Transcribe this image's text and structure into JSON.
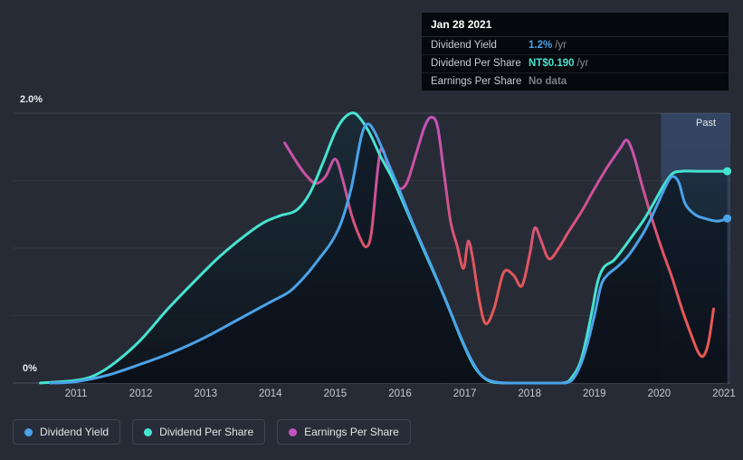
{
  "page": {
    "background": "#272B36"
  },
  "tooltip": {
    "date": "Jan 28 2021",
    "rows": [
      {
        "label": "Dividend Yield",
        "value": "1.2%",
        "suffix": "/yr",
        "value_color": "#4BA3E8"
      },
      {
        "label": "Dividend Per Share",
        "value": "NT$0.190",
        "suffix": "/yr",
        "value_color": "#46E3D0"
      },
      {
        "label": "Earnings Per Share",
        "value": "No data",
        "suffix": "",
        "value_color": "#7A8089"
      }
    ]
  },
  "axis": {
    "y_top": "2.0%",
    "y_bottom": "0%"
  },
  "legend": [
    {
      "label": "Dividend Yield",
      "color": "#4BA3E8"
    },
    {
      "label": "Dividend Per Share",
      "color": "#46E3D0"
    },
    {
      "label": "Earnings Per Share",
      "color": "#C653BE"
    }
  ],
  "chart_data": {
    "type": "line",
    "y_axis": {
      "min": 0,
      "max": 2.0,
      "unit": "%",
      "top_label": "2.0%",
      "bottom_label": "0%",
      "gridlines": [
        2.0,
        1.5,
        1.0,
        0.5,
        0
      ]
    },
    "x_ticks": [
      {
        "label": "2011",
        "year": 2011
      },
      {
        "label": "2012",
        "year": 2012
      },
      {
        "label": "2013",
        "year": 2013
      },
      {
        "label": "2014",
        "year": 2014
      },
      {
        "label": "2015",
        "year": 2015
      },
      {
        "label": "2016",
        "year": 2016
      },
      {
        "label": "2017",
        "year": 2017
      },
      {
        "label": "2018",
        "year": 2018
      },
      {
        "label": "2019",
        "year": 2019
      },
      {
        "label": "2020",
        "year": 2020
      },
      {
        "label": "2021",
        "year": 2021
      }
    ],
    "past_region": {
      "label": "Past",
      "start_year": 2020.03,
      "end_year": 2021.1
    },
    "series": [
      {
        "name": "Dividend Yield",
        "color": "#4BA3E8",
        "points": [
          [
            2010.6,
            0
          ],
          [
            2011,
            0.01
          ],
          [
            2011.5,
            0.06
          ],
          [
            2012,
            0.14
          ],
          [
            2012.5,
            0.23
          ],
          [
            2013,
            0.34
          ],
          [
            2013.5,
            0.47
          ],
          [
            2014,
            0.6
          ],
          [
            2014.3,
            0.68
          ],
          [
            2014.55,
            0.8
          ],
          [
            2014.75,
            0.92
          ],
          [
            2014.95,
            1.05
          ],
          [
            2015.1,
            1.2
          ],
          [
            2015.25,
            1.45
          ],
          [
            2015.4,
            1.82
          ],
          [
            2015.5,
            1.92
          ],
          [
            2015.62,
            1.85
          ],
          [
            2015.8,
            1.65
          ],
          [
            2016,
            1.42
          ],
          [
            2016.2,
            1.18
          ],
          [
            2016.5,
            0.85
          ],
          [
            2016.8,
            0.5
          ],
          [
            2017.05,
            0.22
          ],
          [
            2017.25,
            0.06
          ],
          [
            2017.45,
            0.01
          ],
          [
            2017.7,
            0
          ],
          [
            2018.2,
            0
          ],
          [
            2018.55,
            0
          ],
          [
            2018.7,
            0.05
          ],
          [
            2018.85,
            0.22
          ],
          [
            2019,
            0.5
          ],
          [
            2019.1,
            0.72
          ],
          [
            2019.2,
            0.8
          ],
          [
            2019.35,
            0.86
          ],
          [
            2019.5,
            0.93
          ],
          [
            2019.65,
            1.03
          ],
          [
            2019.8,
            1.15
          ],
          [
            2019.95,
            1.3
          ],
          [
            2020.1,
            1.46
          ],
          [
            2020.2,
            1.53
          ],
          [
            2020.3,
            1.49
          ],
          [
            2020.4,
            1.33
          ],
          [
            2020.55,
            1.25
          ],
          [
            2020.7,
            1.22
          ],
          [
            2020.9,
            1.2
          ],
          [
            2021.05,
            1.22
          ]
        ]
      },
      {
        "name": "Dividend Per Share",
        "color": "#46E3D0",
        "points": [
          [
            2010.45,
            0
          ],
          [
            2011,
            0.02
          ],
          [
            2011.3,
            0.06
          ],
          [
            2011.6,
            0.15
          ],
          [
            2012,
            0.32
          ],
          [
            2012.4,
            0.54
          ],
          [
            2012.8,
            0.74
          ],
          [
            2013.2,
            0.93
          ],
          [
            2013.6,
            1.09
          ],
          [
            2013.9,
            1.19
          ],
          [
            2014.15,
            1.24
          ],
          [
            2014.4,
            1.28
          ],
          [
            2014.6,
            1.4
          ],
          [
            2014.8,
            1.62
          ],
          [
            2015,
            1.86
          ],
          [
            2015.15,
            1.97
          ],
          [
            2015.3,
            2.0
          ],
          [
            2015.5,
            1.88
          ],
          [
            2015.7,
            1.68
          ],
          [
            2015.9,
            1.5
          ],
          [
            2016.1,
            1.28
          ],
          [
            2016.4,
            0.95
          ],
          [
            2016.7,
            0.62
          ],
          [
            2016.95,
            0.32
          ],
          [
            2017.15,
            0.12
          ],
          [
            2017.35,
            0.02
          ],
          [
            2017.6,
            0
          ],
          [
            2018,
            0
          ],
          [
            2018.5,
            0
          ],
          [
            2018.65,
            0.04
          ],
          [
            2018.8,
            0.18
          ],
          [
            2018.95,
            0.5
          ],
          [
            2019.05,
            0.75
          ],
          [
            2019.15,
            0.86
          ],
          [
            2019.3,
            0.91
          ],
          [
            2019.45,
            1.0
          ],
          [
            2019.6,
            1.1
          ],
          [
            2019.75,
            1.2
          ],
          [
            2019.9,
            1.32
          ],
          [
            2020.05,
            1.45
          ],
          [
            2020.2,
            1.55
          ],
          [
            2020.35,
            1.57
          ],
          [
            2020.6,
            1.57
          ],
          [
            2020.85,
            1.57
          ],
          [
            2021.05,
            1.57
          ]
        ]
      },
      {
        "name": "Earnings Per Share",
        "color": "#C653BE",
        "color_low": "#EA5A4C",
        "points": [
          [
            2014.22,
            1.78
          ],
          [
            2014.4,
            1.64
          ],
          [
            2014.55,
            1.54
          ],
          [
            2014.7,
            1.48
          ],
          [
            2014.85,
            1.53
          ],
          [
            2015.0,
            1.66
          ],
          [
            2015.12,
            1.5
          ],
          [
            2015.25,
            1.25
          ],
          [
            2015.38,
            1.08
          ],
          [
            2015.48,
            1.01
          ],
          [
            2015.56,
            1.12
          ],
          [
            2015.66,
            1.6
          ],
          [
            2015.72,
            1.74
          ],
          [
            2015.82,
            1.6
          ],
          [
            2015.92,
            1.48
          ],
          [
            2016.02,
            1.44
          ],
          [
            2016.12,
            1.5
          ],
          [
            2016.25,
            1.7
          ],
          [
            2016.38,
            1.9
          ],
          [
            2016.48,
            1.97
          ],
          [
            2016.58,
            1.9
          ],
          [
            2016.68,
            1.55
          ],
          [
            2016.78,
            1.2
          ],
          [
            2016.88,
            1.02
          ],
          [
            2016.98,
            0.85
          ],
          [
            2017.05,
            1.05
          ],
          [
            2017.12,
            0.93
          ],
          [
            2017.22,
            0.62
          ],
          [
            2017.32,
            0.44
          ],
          [
            2017.45,
            0.55
          ],
          [
            2017.6,
            0.82
          ],
          [
            2017.75,
            0.8
          ],
          [
            2017.88,
            0.72
          ],
          [
            2018.0,
            0.95
          ],
          [
            2018.08,
            1.15
          ],
          [
            2018.18,
            1.05
          ],
          [
            2018.3,
            0.92
          ],
          [
            2018.45,
            1.0
          ],
          [
            2018.6,
            1.12
          ],
          [
            2018.8,
            1.27
          ],
          [
            2019.0,
            1.44
          ],
          [
            2019.2,
            1.6
          ],
          [
            2019.4,
            1.74
          ],
          [
            2019.5,
            1.8
          ],
          [
            2019.6,
            1.7
          ],
          [
            2019.75,
            1.44
          ],
          [
            2019.9,
            1.2
          ],
          [
            2020.05,
            0.98
          ],
          [
            2020.2,
            0.78
          ],
          [
            2020.35,
            0.55
          ],
          [
            2020.5,
            0.35
          ],
          [
            2020.6,
            0.23
          ],
          [
            2020.68,
            0.2
          ],
          [
            2020.76,
            0.3
          ],
          [
            2020.84,
            0.55
          ]
        ]
      }
    ],
    "end_markers": [
      {
        "series": "Dividend Per Share",
        "year": 2021.05,
        "value": 1.57
      },
      {
        "series": "Dividend Yield",
        "year": 2021.05,
        "value": 1.22
      }
    ]
  }
}
